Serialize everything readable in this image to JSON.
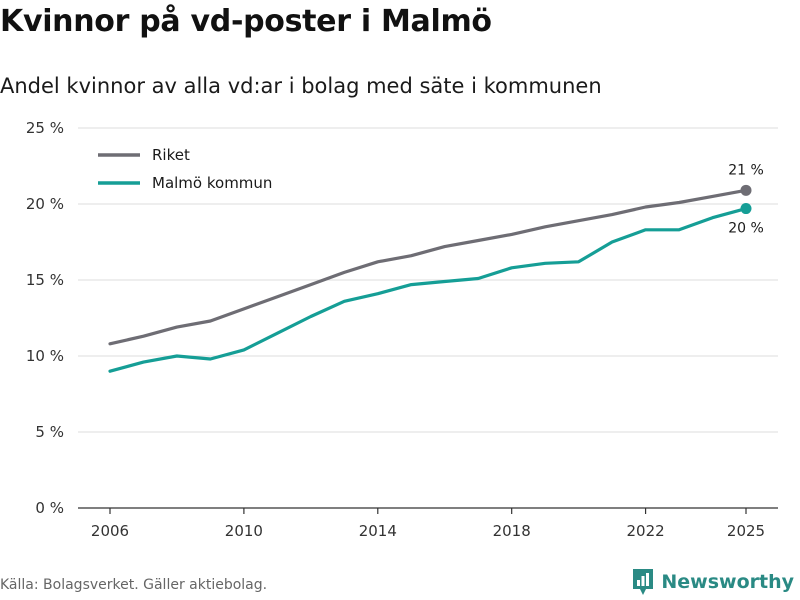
{
  "chart_data": {
    "type": "line",
    "title": "Kvinnor på vd-poster i Malmö",
    "subtitle": "Andel kvinnor av alla vd:ar i bolag med säte i kommunen",
    "xlabel": "",
    "ylabel": "",
    "x": [
      2006,
      2007,
      2008,
      2009,
      2010,
      2011,
      2012,
      2013,
      2014,
      2015,
      2016,
      2017,
      2018,
      2019,
      2020,
      2021,
      2022,
      2023,
      2024,
      2025
    ],
    "xticks": [
      2006,
      2010,
      2014,
      2018,
      2022,
      2025
    ],
    "xtick_labels": [
      "2006",
      "2010",
      "2014",
      "2018",
      "2022",
      "2025"
    ],
    "xlim": [
      2006,
      2025
    ],
    "ylim": [
      0,
      25
    ],
    "yticks": [
      0,
      5,
      10,
      15,
      20,
      25
    ],
    "ytick_labels": [
      "0 %",
      "5 %",
      "10 %",
      "15 %",
      "20 %",
      "25 %"
    ],
    "grid": true,
    "legend_position": "top-left",
    "series": [
      {
        "name": "Riket",
        "color": "#6e6d74",
        "values": [
          10.8,
          11.3,
          11.9,
          12.3,
          13.1,
          13.9,
          14.7,
          15.5,
          16.2,
          16.6,
          17.2,
          17.6,
          18.0,
          18.5,
          18.9,
          19.3,
          19.8,
          20.1,
          20.5,
          20.9
        ],
        "end_label": "21 %"
      },
      {
        "name": "Malmö kommun",
        "color": "#159e96",
        "values": [
          9.0,
          9.6,
          10.0,
          9.8,
          10.4,
          11.5,
          12.6,
          13.6,
          14.1,
          14.7,
          14.9,
          15.1,
          15.8,
          16.1,
          16.2,
          17.5,
          18.3,
          18.3,
          19.1,
          19.7
        ],
        "end_label": "20 %"
      }
    ]
  },
  "footer": {
    "source": "Källa: Bolagsverket. Gäller aktiebolag.",
    "brand": "Newsworthy"
  },
  "colors": {
    "grid": "#dddddd",
    "axis": "#333333",
    "brand": "#2a8a84"
  },
  "icons": {
    "logo": "newsworthy-logo-icon"
  }
}
